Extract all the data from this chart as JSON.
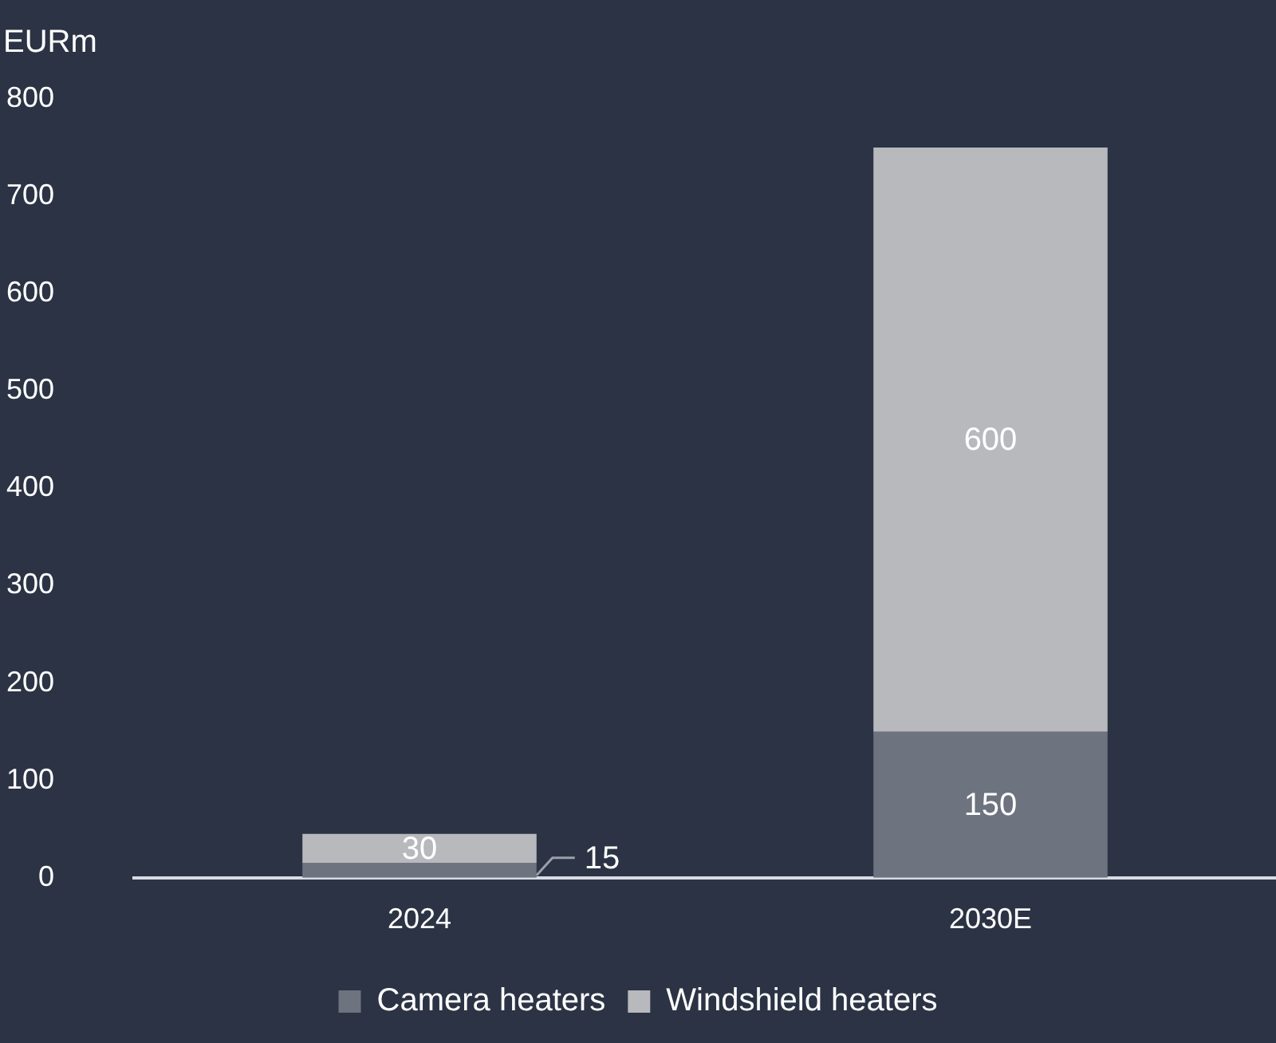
{
  "chart_data": {
    "type": "bar",
    "ylabel": "EURm",
    "categories": [
      "2024",
      "2030E"
    ],
    "stacked": true,
    "series": [
      {
        "name": "Camera heaters",
        "color": "#6d737f",
        "values": [
          15,
          150
        ]
      },
      {
        "name": "Windshield heaters",
        "color": "#b8b9bd",
        "values": [
          30,
          600
        ]
      }
    ],
    "ylim": [
      0,
      800
    ],
    "yticks": [
      0,
      100,
      200,
      300,
      400,
      500,
      600,
      700,
      800
    ],
    "grid": false,
    "legend": "bottom",
    "data_labels": true
  }
}
